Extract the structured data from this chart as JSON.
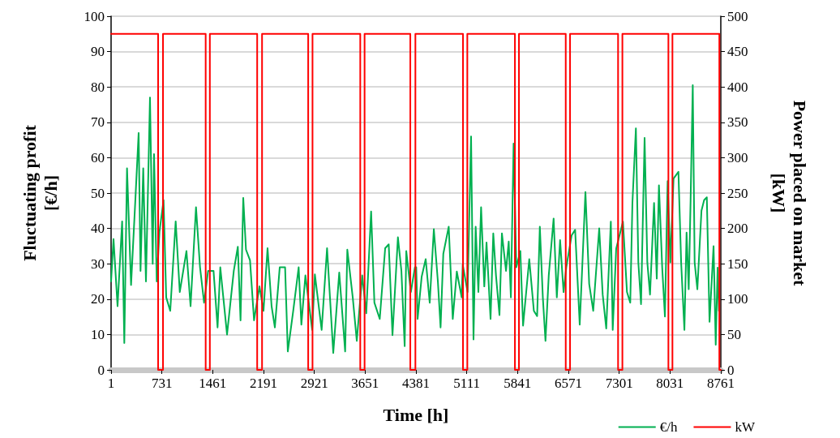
{
  "chart_data": {
    "type": "line",
    "xlabel": "Time [h]",
    "ylabel": "Fluctuating profit\n[€/h]",
    "y2label": "Power placed on market\n[kW]",
    "xlim": [
      1,
      8761
    ],
    "xticks": [
      1,
      731,
      1461,
      2191,
      2921,
      3651,
      4381,
      5111,
      5841,
      6571,
      7301,
      8031,
      8761
    ],
    "ylim": [
      0,
      100
    ],
    "yticks": [
      0,
      10,
      20,
      30,
      40,
      50,
      60,
      70,
      80,
      90,
      100
    ],
    "y2lim": [
      0,
      500
    ],
    "y2ticks": [
      0,
      50,
      100,
      150,
      200,
      250,
      300,
      350,
      400,
      450,
      500
    ],
    "grid": "y",
    "legend": "bottom right",
    "marker": "none",
    "line_style": "solid",
    "series": [
      {
        "name": "€/h",
        "color": "#00b050",
        "x": [
          1,
          36,
          94,
          160,
          191,
          230,
          288,
          347,
          397,
          424,
          463,
          502,
          560,
          599,
          618,
          657,
          696,
          755,
          793,
          851,
          929,
          988,
          1084,
          1143,
          1221,
          1279,
          1337,
          1395,
          1473,
          1531,
          1570,
          1667,
          1764,
          1822,
          1861,
          1900,
          1939,
          1997,
          2055,
          2133,
          2191,
          2249,
          2307,
          2354,
          2424,
          2501,
          2540,
          2618,
          2696,
          2735,
          2793,
          2890,
          2929,
          3026,
          3104,
          3193,
          3279,
          3364,
          3395,
          3473,
          3531,
          3609,
          3667,
          3737,
          3784,
          3861,
          3939,
          3990,
          4044,
          4122,
          4172,
          4219,
          4242,
          4308,
          4366,
          4385,
          4405,
          4463,
          4521,
          4579,
          4638,
          4696,
          4735,
          4774,
          4852,
          4910,
          4968,
          5038,
          5053,
          5123,
          5173,
          5208,
          5239,
          5278,
          5317,
          5363,
          5395,
          5453,
          5492,
          5531,
          5581,
          5616,
          5675,
          5714,
          5745,
          5784,
          5823,
          5881,
          5920,
          6009,
          6075,
          6122,
          6161,
          6204,
          6242,
          6289,
          6359,
          6405,
          6452,
          6502,
          6541,
          6617,
          6668,
          6734,
          6773,
          6816,
          6870,
          6928,
          7014,
          7064,
          7115,
          7181,
          7208,
          7258,
          7355,
          7413,
          7460,
          7491,
          7541,
          7576,
          7615,
          7666,
          7705,
          7744,
          7802,
          7841,
          7872,
          7919,
          7958,
          7997,
          8036,
          8082,
          8152,
          8191,
          8238,
          8269,
          8300,
          8327,
          8358,
          8385,
          8424,
          8483,
          8521,
          8560,
          8599,
          8657,
          8688,
          8715,
          8734
        ],
        "values": [
          25,
          37,
          18,
          42,
          7.6,
          57,
          24,
          47,
          67,
          28,
          57,
          25,
          77,
          30,
          61,
          25,
          39,
          48,
          20.5,
          16.7,
          42,
          22,
          33.6,
          18,
          46,
          29,
          19,
          28,
          28,
          12,
          29,
          10,
          28,
          34.8,
          14,
          48.6,
          34,
          31,
          14,
          23.6,
          16.7,
          34.4,
          18,
          12,
          29,
          29,
          5.2,
          16.7,
          29,
          12.8,
          26.7,
          11.3,
          27,
          11.3,
          34.4,
          4.8,
          27.5,
          5.2,
          34,
          20.5,
          8.2,
          26.7,
          16,
          44.8,
          19,
          14.4,
          34.4,
          35.5,
          9.8,
          37.5,
          28,
          6.7,
          33.6,
          22,
          29,
          29,
          14.4,
          26.3,
          31.3,
          19,
          39.8,
          25,
          12,
          32.8,
          40.5,
          14.4,
          27.8,
          20.5,
          29.8,
          22,
          66,
          8.6,
          40.5,
          22,
          46,
          23.6,
          36,
          14.4,
          38.6,
          26.7,
          15.5,
          38.6,
          28,
          36.3,
          20.5,
          64,
          29,
          33.6,
          12.5,
          31.3,
          16.7,
          15.2,
          40.5,
          20.5,
          8.2,
          26.7,
          42.8,
          20.5,
          36.7,
          22,
          29,
          38,
          39.6,
          12.8,
          30.4,
          50.3,
          24.3,
          16.7,
          40,
          21.3,
          11.7,
          41.9,
          11.3,
          34.3,
          41.9,
          22,
          19,
          47.2,
          68.3,
          30.4,
          18.6,
          65.6,
          30.4,
          21.3,
          47.2,
          25.8,
          52.2,
          28.9,
          15.1,
          53.4,
          30.4,
          54.1,
          56,
          30.4,
          11.3,
          38.8,
          22.8,
          48,
          80.5,
          30.4,
          22.8,
          45,
          48,
          48.8,
          13.6,
          35,
          7.1,
          28.9,
          16.7
        ]
      },
      {
        "name": "kW",
        "color": "#ff0000",
        "axis": "y2",
        "x": [
          1,
          677,
          677,
          747,
          747,
          1360,
          1360,
          1420,
          1420,
          2100,
          2100,
          2170,
          2170,
          2833,
          2833,
          2895,
          2895,
          3581,
          3581,
          3643,
          3643,
          4300,
          4300,
          4373,
          4373,
          5057,
          5057,
          5119,
          5119,
          5803,
          5803,
          5861,
          5861,
          6533,
          6533,
          6595,
          6595,
          7285,
          7285,
          7347,
          7347,
          8008,
          8008,
          8066,
          8066,
          8740,
          8740,
          8761
        ],
        "values": [
          475,
          475,
          0,
          0,
          475,
          475,
          0,
          0,
          475,
          475,
          0,
          0,
          475,
          475,
          0,
          0,
          475,
          475,
          0,
          0,
          475,
          475,
          0,
          0,
          475,
          475,
          0,
          0,
          475,
          475,
          0,
          0,
          475,
          475,
          0,
          0,
          475,
          475,
          0,
          0,
          475,
          475,
          0,
          0,
          475,
          475,
          0,
          0
        ]
      }
    ]
  }
}
